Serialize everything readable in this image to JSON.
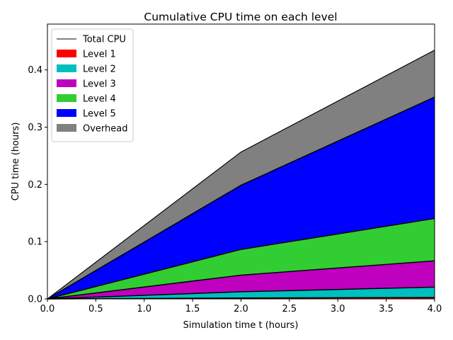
{
  "chart_data": {
    "type": "area",
    "title": "Cumulative CPU time on each level",
    "xlabel": "Simulation time t (hours)",
    "ylabel": "CPU time (hours)",
    "x": [
      0.0,
      2.0,
      4.0
    ],
    "xlim": [
      0.0,
      4.0
    ],
    "ylim": [
      0.0,
      0.48
    ],
    "xticks": [
      "0.0",
      "0.5",
      "1.0",
      "1.5",
      "2.0",
      "2.5",
      "3.0",
      "3.5",
      "4.0"
    ],
    "yticks": [
      "0.0",
      "0.1",
      "0.2",
      "0.3",
      "0.4"
    ],
    "grid": false,
    "legend_position": "top-left",
    "stacked": true,
    "series": [
      {
        "name": "Level 1",
        "color": "#ff0000",
        "values": [
          0.0,
          0.0015,
          0.0025
        ]
      },
      {
        "name": "Level 2",
        "color": "#00bfbf",
        "values": [
          0.0,
          0.011,
          0.018
        ]
      },
      {
        "name": "Level 3",
        "color": "#bf00bf",
        "values": [
          0.0,
          0.029,
          0.046
        ]
      },
      {
        "name": "Level 4",
        "color": "#32cd32",
        "values": [
          0.0,
          0.045,
          0.074
        ]
      },
      {
        "name": "Level 5",
        "color": "#0000ff",
        "values": [
          0.0,
          0.112,
          0.212
        ]
      },
      {
        "name": "Overhead",
        "color": "#808080",
        "values": [
          0.0,
          0.058,
          0.082
        ]
      }
    ],
    "total": {
      "name": "Total CPU",
      "color": "#000000",
      "values": [
        0.0,
        0.2565,
        0.4345
      ]
    }
  }
}
